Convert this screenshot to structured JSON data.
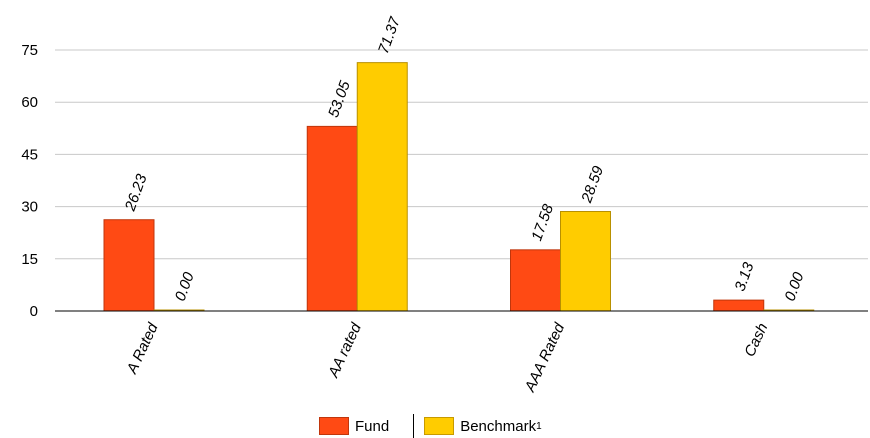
{
  "chart_data": {
    "type": "bar",
    "categories": [
      "A Rated",
      "AA rated",
      "AAA Rated",
      "Cash"
    ],
    "series": [
      {
        "name": "Fund",
        "values": [
          26.23,
          53.05,
          17.58,
          3.13
        ],
        "labels": [
          "26.23",
          "53.05",
          "17.58",
          "3.13"
        ],
        "color": "#ff4a14"
      },
      {
        "name": "Benchmark",
        "values": [
          0.0,
          71.37,
          28.59,
          0.0
        ],
        "labels": [
          "0.00",
          "71.37",
          "28.59",
          "0.00"
        ],
        "color": "#ffcc00"
      }
    ],
    "ylim": [
      0,
      75
    ],
    "yticks": [
      "0",
      "15",
      "30",
      "45",
      "60",
      "75"
    ],
    "grid": true,
    "legend_position": "bottom"
  },
  "legend": {
    "fund_label": "Fund",
    "benchmark_label": "Benchmark",
    "benchmark_sup": "1"
  }
}
